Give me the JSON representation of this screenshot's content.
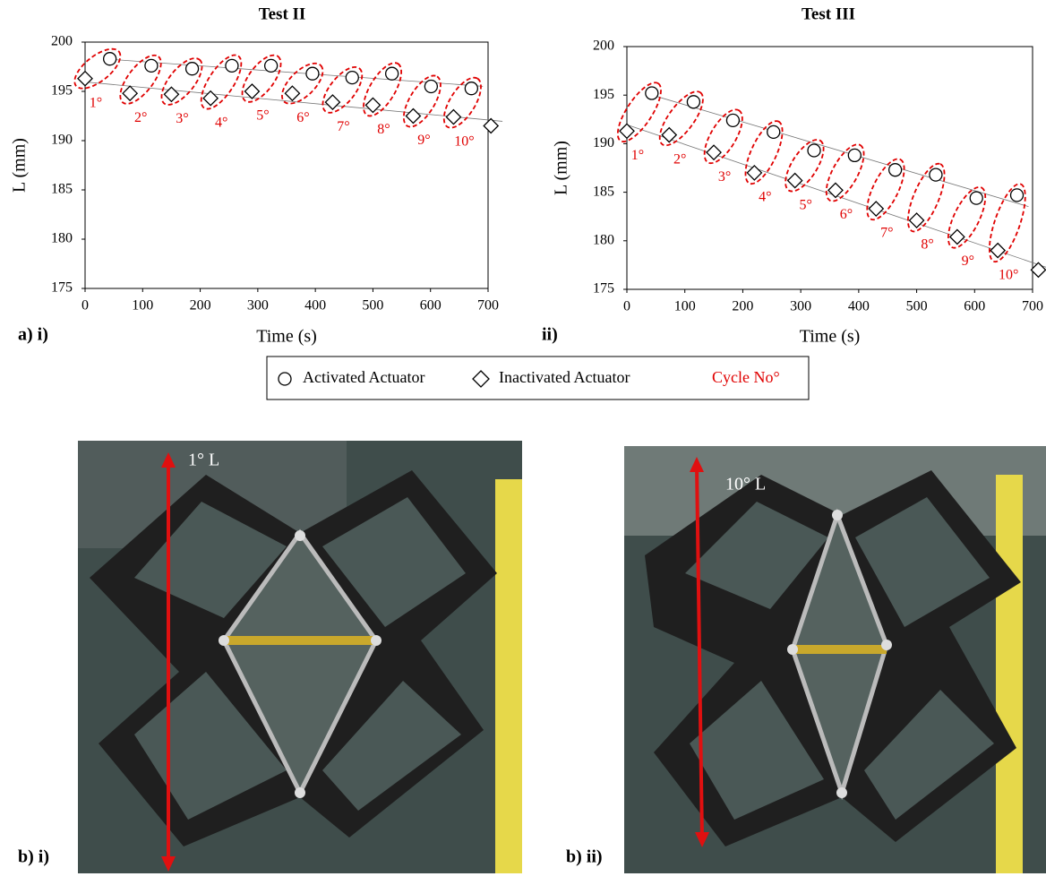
{
  "chart_data": [
    {
      "type": "scatter",
      "title": "Test II",
      "x_label": "Time (s)",
      "y_label": "L (mm)",
      "xlim": [
        0,
        700
      ],
      "xticks": [
        0,
        100,
        200,
        300,
        400,
        500,
        600,
        700
      ],
      "ylim": [
        175,
        200
      ],
      "yticks": [
        175,
        180,
        185,
        190,
        195,
        200
      ],
      "trendline": true,
      "cycle_color": "#e00000",
      "cycles": [
        "1°",
        "2°",
        "3°",
        "4°",
        "5°",
        "6°",
        "7°",
        "8°",
        "9°",
        "10°"
      ],
      "series": [
        {
          "name": "Activated Actuator",
          "marker": "circle",
          "color": "#000000",
          "x": [
            43,
            115,
            186,
            255,
            323,
            395,
            464,
            533,
            601,
            671
          ],
          "values": [
            198.3,
            197.6,
            197.3,
            197.6,
            197.6,
            196.8,
            196.4,
            196.8,
            195.5,
            195.3
          ]
        },
        {
          "name": "Inactivated Actuator",
          "marker": "diamond",
          "color": "#000000",
          "x": [
            0,
            78,
            150,
            218,
            290,
            360,
            430,
            500,
            570,
            640,
            705
          ],
          "values": [
            196.3,
            194.8,
            194.7,
            194.3,
            195.0,
            194.8,
            193.9,
            193.6,
            192.5,
            192.4,
            191.5
          ]
        }
      ]
    },
    {
      "type": "scatter",
      "title": "Test III",
      "x_label": "Time (s)",
      "y_label": "L (mm)",
      "xlim": [
        0,
        700
      ],
      "xticks": [
        0,
        100,
        200,
        300,
        400,
        500,
        600,
        700
      ],
      "ylim": [
        175,
        200
      ],
      "yticks": [
        175,
        180,
        185,
        190,
        195,
        200
      ],
      "trendline": true,
      "cycle_color": "#e00000",
      "cycles": [
        "1°",
        "2°",
        "3°",
        "4°",
        "5°",
        "6°",
        "7°",
        "8°",
        "9°",
        "10°"
      ],
      "series": [
        {
          "marker": "circle",
          "color": "#000000",
          "x": [
            43,
            115,
            183,
            253,
            323,
            393,
            463,
            533,
            603,
            673
          ],
          "values": [
            195.2,
            194.3,
            192.4,
            191.2,
            189.3,
            188.8,
            187.3,
            186.8,
            184.4,
            184.7
          ]
        },
        {
          "marker": "diamond",
          "color": "#000000",
          "x": [
            0,
            73,
            150,
            220,
            290,
            360,
            430,
            500,
            570,
            640,
            710
          ],
          "values": [
            191.3,
            190.9,
            189.1,
            187.0,
            186.2,
            185.2,
            183.3,
            182.1,
            180.4,
            179.0,
            177.0
          ]
        }
      ]
    }
  ],
  "legend_extra": "Cycle No°",
  "panel_labels": [
    "a) i)",
    "ii)",
    "b) i)",
    "b) ii)"
  ],
  "photo_labels": [
    "1° L",
    "10° L"
  ]
}
